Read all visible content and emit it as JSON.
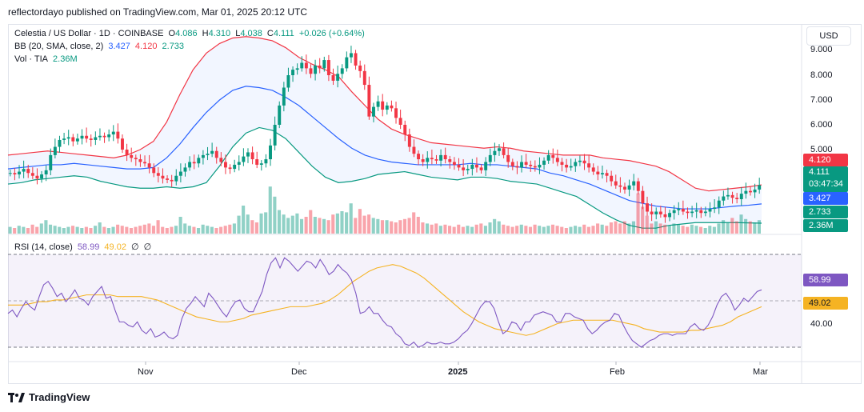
{
  "header": {
    "text": "reflectordayo published on TradingView.com, Mar 01, 2025 20:12 UTC"
  },
  "legend": {
    "symbol": "Celestia / US Dollar · 1D · COINBASE",
    "o_label": "O",
    "o_value": "4.086",
    "h_label": "H",
    "h_value": "4.310",
    "l_label": "L",
    "l_value": "4.038",
    "c_label": "C",
    "c_value": "4.111",
    "change": "+0.026 (+0.64%)",
    "bb_label": "BB (20, SMA, close, 2)",
    "bb_basis": "3.427",
    "bb_upper": "4.120",
    "bb_lower": "2.733",
    "vol_label": "Vol · TIA",
    "vol_value": "2.36M",
    "rsi_label": "RSI (14, close)",
    "rsi_value": "58.99",
    "rsi_ma": "49.02",
    "rsi_extra1": "∅",
    "rsi_extra2": "∅"
  },
  "currency": "USD",
  "price_ticks": [
    "9.000",
    "8.000",
    "7.000",
    "6.000",
    "5.000"
  ],
  "price_tags": {
    "upper": "4.120",
    "close": "4.111",
    "countdown": "03:47:34",
    "basis": "3.427",
    "lower": "2.733",
    "volume": "2.36M"
  },
  "rsi_ticks": [
    "40.00"
  ],
  "rsi_tags": {
    "rsi": "58.99",
    "ma": "49.02"
  },
  "x_labels": [
    "Nov",
    "Dec",
    "2025",
    "Feb",
    "Mar"
  ],
  "footer": {
    "brand": "TradingView"
  },
  "colors": {
    "up": "#089981",
    "down": "#f23645",
    "bb_upper": "#f23645",
    "bb_basis": "#2962ff",
    "bb_lower": "#089981",
    "bb_fill": "#2962ff",
    "rsi": "#7e57c2",
    "rsi_ma": "#f5b323"
  },
  "chart_data": {
    "type": "candlestick",
    "price_axis": [
      2.7,
      9.0
    ],
    "closes": [
      4.55,
      4.5,
      4.6,
      4.7,
      4.55,
      4.45,
      4.35,
      4.5,
      4.65,
      5.2,
      5.5,
      5.75,
      5.8,
      5.85,
      5.7,
      5.8,
      5.9,
      5.8,
      5.75,
      5.85,
      5.9,
      5.85,
      5.95,
      6.05,
      5.8,
      5.4,
      5.2,
      5.1,
      5.05,
      4.95,
      4.9,
      4.75,
      4.55,
      4.45,
      4.35,
      4.3,
      4.25,
      4.45,
      4.6,
      4.75,
      4.95,
      4.9,
      5.1,
      5.2,
      5.25,
      5.35,
      5.1,
      4.95,
      4.75,
      4.7,
      4.85,
      4.95,
      5.15,
      5.3,
      5.05,
      4.85,
      4.9,
      5.05,
      5.55,
      6.3,
      7.0,
      7.65,
      8.1,
      8.3,
      8.35,
      8.55,
      8.35,
      8.15,
      8.45,
      8.35,
      8.65,
      8.1,
      7.9,
      8.15,
      8.35,
      8.75,
      8.9,
      8.45,
      8.25,
      7.75,
      6.6,
      6.95,
      7.15,
      6.85,
      7.0,
      6.9,
      6.55,
      6.3,
      5.95,
      5.5,
      5.25,
      5.05,
      4.95,
      5.1,
      5.05,
      5.0,
      5.2,
      5.05,
      4.95,
      4.85,
      4.75,
      4.65,
      4.7,
      4.85,
      4.75,
      4.65,
      4.95,
      5.2,
      5.35,
      5.45,
      5.2,
      4.95,
      4.8,
      4.75,
      4.95,
      4.85,
      4.8,
      4.75,
      4.85,
      5.0,
      5.2,
      5.1,
      4.95,
      4.85,
      4.75,
      4.8,
      4.95,
      5.0,
      4.9,
      4.75,
      4.6,
      4.5,
      4.55,
      4.45,
      4.25,
      4.1,
      4.05,
      3.95,
      4.1,
      4.25,
      3.9,
      3.45,
      3.15,
      3.05,
      3.15,
      3.05,
      2.95,
      3.1,
      3.2,
      3.25,
      3.15,
      3.1,
      3.15,
      3.2,
      3.1,
      3.15,
      3.25,
      3.3,
      3.55,
      3.7,
      3.75,
      3.65,
      3.6,
      3.8,
      3.9,
      3.85,
      3.95,
      4.11
    ],
    "bb_upper": [
      5.2,
      5.25,
      5.3,
      5.35,
      5.3,
      5.25,
      5.2,
      5.15,
      5.1,
      5.2,
      5.4,
      5.7,
      6.4,
      7.4,
      8.3,
      8.9,
      9.25,
      9.45,
      9.5,
      9.45,
      9.35,
      9.1,
      8.75,
      8.5,
      8.3,
      8.05,
      7.5,
      7.0,
      6.5,
      6.15,
      5.95,
      5.8,
      5.65,
      5.6,
      5.55,
      5.5,
      5.45,
      5.5,
      5.45,
      5.35,
      5.3,
      5.25,
      5.2,
      5.2,
      5.2,
      5.1,
      5.05,
      5.0,
      4.9,
      4.8,
      4.6,
      4.3,
      4.0,
      3.9,
      3.95,
      4.0,
      4.05,
      4.12
    ],
    "bb_basis": [
      4.7,
      4.75,
      4.8,
      4.85,
      4.85,
      4.9,
      4.85,
      4.8,
      4.75,
      4.7,
      4.7,
      4.75,
      5.1,
      5.6,
      6.2,
      6.75,
      7.2,
      7.55,
      7.7,
      7.65,
      7.55,
      7.3,
      7.0,
      6.6,
      6.2,
      5.8,
      5.45,
      5.2,
      5.05,
      4.95,
      4.9,
      4.85,
      4.85,
      4.85,
      4.85,
      4.9,
      4.85,
      4.85,
      4.8,
      4.75,
      4.7,
      4.55,
      4.45,
      4.3,
      4.15,
      3.95,
      3.75,
      3.55,
      3.45,
      3.35,
      3.3,
      3.25,
      3.25,
      3.25,
      3.3,
      3.35,
      3.38,
      3.43
    ],
    "bb_lower": [
      4.15,
      4.2,
      4.3,
      4.35,
      4.4,
      4.45,
      4.4,
      4.25,
      4.15,
      4.05,
      4.0,
      4.0,
      4.05,
      4.0,
      4.05,
      4.2,
      4.8,
      5.5,
      6.0,
      6.2,
      6.1,
      5.8,
      5.3,
      4.8,
      4.4,
      4.2,
      4.25,
      4.35,
      4.5,
      4.55,
      4.6,
      4.5,
      4.4,
      4.35,
      4.3,
      4.4,
      4.4,
      4.35,
      4.25,
      4.2,
      4.15,
      4.0,
      3.85,
      3.7,
      3.4,
      3.1,
      2.85,
      2.65,
      2.55,
      2.55,
      2.65,
      2.7,
      2.75,
      2.75,
      2.75,
      2.75,
      2.74,
      2.73
    ],
    "volumes": [
      0.6,
      0.5,
      0.7,
      0.6,
      0.5,
      0.8,
      0.6,
      0.9,
      1.2,
      0.8,
      0.7,
      0.6,
      0.5,
      0.6,
      0.7,
      0.6,
      0.5,
      0.6,
      0.5,
      0.7,
      1.0,
      0.6,
      0.5,
      0.6,
      0.8,
      0.7,
      0.6,
      0.5,
      0.6,
      0.7,
      0.8,
      0.9,
      0.7,
      1.2,
      0.6,
      0.5,
      0.6,
      0.7,
      1.5,
      0.9,
      0.7,
      0.6,
      0.5,
      0.8,
      0.7,
      0.6,
      0.5,
      0.6,
      0.7,
      0.8,
      0.9,
      1.6,
      2.5,
      1.7,
      1.2,
      1.0,
      1.8,
      1.9,
      4.2,
      3.3,
      2.1,
      1.7,
      1.4,
      1.6,
      1.8,
      1.3,
      1.5,
      2.1,
      1.5,
      1.4,
      1.3,
      1.2,
      1.7,
      1.8,
      2.0,
      1.9,
      2.7,
      1.4,
      2.2,
      1.6,
      1.7,
      1.4,
      1.3,
      1.2,
      1.2,
      1.1,
      1.0,
      1.2,
      1.3,
      1.4,
      1.9,
      1.5,
      1.0,
      0.9,
      0.8,
      0.9,
      0.7,
      0.8,
      0.7,
      0.6,
      0.8,
      0.6,
      0.7,
      0.6,
      0.8,
      0.9,
      0.7,
      1.0,
      1.3,
      1.1,
      0.8,
      0.7,
      0.6,
      0.7,
      0.8,
      0.7,
      0.6,
      0.8,
      0.7,
      0.6,
      0.7,
      0.8,
      0.7,
      0.6,
      0.5,
      0.6,
      0.7,
      0.6,
      0.8,
      0.6,
      0.7,
      0.9,
      0.8,
      0.7,
      1.0,
      1.1,
      0.9,
      1.1,
      0.9,
      1.1,
      3.6,
      2.4,
      1.6,
      0.9,
      1.1,
      0.9,
      0.8,
      0.7,
      0.9,
      0.8,
      0.7,
      0.6,
      0.8,
      0.7,
      0.6,
      0.5,
      0.7,
      0.6,
      0.9,
      1.2,
      1.0,
      1.4,
      1.1,
      1.7,
      1.3,
      1.1,
      1.0,
      1.2
    ],
    "rsi_axis": [
      20,
      85
    ],
    "rsi": [
      45,
      47,
      43,
      48,
      52,
      49,
      47,
      55,
      62,
      64,
      60,
      55,
      57,
      52,
      55,
      59,
      54,
      53,
      50,
      55,
      58,
      61,
      54,
      55,
      47,
      40,
      40,
      38,
      37,
      40,
      35,
      33,
      36,
      31,
      32,
      34,
      31,
      30,
      32,
      42,
      48,
      51,
      55,
      52,
      49,
      57,
      54,
      50,
      46,
      43,
      48,
      52,
      53,
      48,
      46,
      46,
      52,
      58,
      68,
      75,
      78,
      72,
      78,
      76,
      73,
      70,
      73,
      76,
      75,
      72,
      77,
      73,
      68,
      70,
      74,
      71,
      69,
      65,
      57,
      45,
      46,
      49,
      45,
      45,
      41,
      38,
      37,
      33,
      31,
      27,
      26,
      28,
      25,
      26,
      28,
      27,
      27,
      28,
      27,
      27,
      28,
      30,
      33,
      35,
      39,
      44,
      49,
      52,
      52,
      48,
      40,
      33,
      35,
      40,
      39,
      35,
      40,
      40,
      44,
      45,
      46,
      45,
      44,
      40,
      40,
      45,
      45,
      43,
      42,
      41,
      36,
      33,
      35,
      38,
      40,
      41,
      45,
      44,
      38,
      33,
      29,
      27,
      25,
      27,
      29,
      30,
      32,
      33,
      33,
      32,
      33,
      33,
      33,
      37,
      39,
      36,
      35,
      38,
      43,
      50,
      55,
      57,
      53,
      47,
      50,
      54,
      52,
      55,
      58,
      58.99
    ],
    "rsi_ma": [
      50,
      50,
      50,
      51,
      52,
      52,
      53,
      53,
      54,
      55,
      56,
      56,
      56,
      56,
      55,
      55,
      55,
      55,
      54,
      53,
      51,
      49,
      47,
      45,
      43,
      42,
      41,
      40,
      40,
      41,
      42,
      44,
      45,
      46,
      47,
      48,
      49,
      49,
      49,
      50,
      51,
      53,
      56,
      60,
      64,
      67,
      70,
      72,
      73,
      74,
      73,
      71,
      69,
      66,
      62,
      58,
      54,
      50,
      46,
      43,
      40,
      38,
      36,
      35,
      34,
      33,
      32,
      33,
      35,
      37,
      39,
      40,
      41,
      41,
      41,
      41,
      41,
      41,
      40,
      39,
      38,
      36,
      35,
      34,
      34,
      34,
      34,
      35,
      35,
      36,
      37,
      38,
      40,
      43,
      45,
      47,
      49.02
    ],
    "x_labels": [
      "Nov",
      "Dec",
      "2025",
      "Feb",
      "Mar"
    ]
  }
}
